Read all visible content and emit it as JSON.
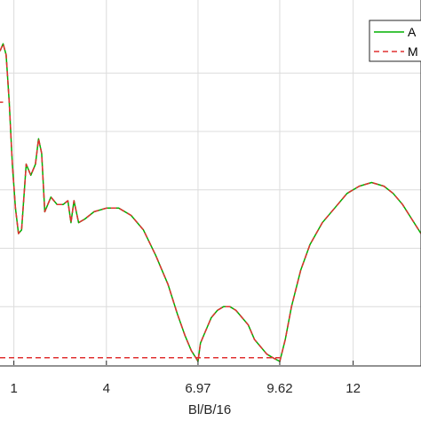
{
  "chart_data": {
    "type": "line",
    "title": "",
    "xlabel": "Bl/B/16",
    "ylabel": "",
    "xlim": [
      0.55,
      14.2
    ],
    "ylim": [
      0,
      1
    ],
    "x_ticks": [
      1,
      4,
      6.97,
      9.62,
      12
    ],
    "x_tick_labels": [
      "1",
      "4",
      "6.97",
      "9.62",
      "12"
    ],
    "grid": true,
    "legend_position": "top-right",
    "series": [
      {
        "name": "A",
        "color": "#00b000",
        "style": "solid",
        "x": [
          0.55,
          0.65,
          0.75,
          0.85,
          0.95,
          1.05,
          1.15,
          1.25,
          1.4,
          1.55,
          1.7,
          1.8,
          1.9,
          2.0,
          2.2,
          2.4,
          2.6,
          2.75,
          2.85,
          2.95,
          3.1,
          3.3,
          3.6,
          4.0,
          4.4,
          4.8,
          5.2,
          5.6,
          6.0,
          6.3,
          6.55,
          6.75,
          6.9,
          6.97,
          7.05,
          7.2,
          7.4,
          7.6,
          7.8,
          8.0,
          8.2,
          8.4,
          8.6,
          8.8,
          9.0,
          9.2,
          9.4,
          9.62,
          9.8,
          10.0,
          10.3,
          10.6,
          11.0,
          11.4,
          11.8,
          12.2,
          12.6,
          13.0,
          13.3,
          13.6,
          13.9,
          14.2
        ],
        "y": [
          0.86,
          0.88,
          0.85,
          0.72,
          0.55,
          0.43,
          0.36,
          0.37,
          0.55,
          0.52,
          0.55,
          0.62,
          0.58,
          0.42,
          0.46,
          0.44,
          0.44,
          0.45,
          0.39,
          0.45,
          0.39,
          0.4,
          0.42,
          0.43,
          0.43,
          0.41,
          0.37,
          0.3,
          0.22,
          0.14,
          0.08,
          0.04,
          0.02,
          0.01,
          0.06,
          0.09,
          0.13,
          0.15,
          0.16,
          0.16,
          0.15,
          0.13,
          0.11,
          0.07,
          0.05,
          0.03,
          0.02,
          0.01,
          0.07,
          0.16,
          0.26,
          0.33,
          0.39,
          0.43,
          0.47,
          0.49,
          0.5,
          0.49,
          0.47,
          0.44,
          0.4,
          0.36
        ]
      },
      {
        "name": "M",
        "color": "#e03030",
        "style": "dashed",
        "x": [
          0.55,
          0.65,
          0.75,
          0.85,
          0.95,
          1.05,
          1.15,
          1.25,
          1.4,
          1.55,
          1.7,
          1.8,
          1.9,
          2.0,
          2.2,
          2.4,
          2.6,
          2.75,
          2.85,
          2.95,
          3.1,
          3.3,
          3.6,
          4.0,
          4.4,
          4.8,
          5.2,
          5.6,
          6.0,
          6.3,
          6.55,
          6.75,
          6.9,
          6.97,
          7.05,
          7.2,
          7.4,
          7.6,
          7.8,
          8.0,
          8.2,
          8.4,
          8.6,
          8.8,
          9.0,
          9.2,
          9.4,
          9.62,
          9.8,
          10.0,
          10.3,
          10.6,
          11.0,
          11.4,
          11.8,
          12.2,
          12.6,
          13.0,
          13.3,
          13.6,
          13.9,
          14.2
        ],
        "y": [
          0.86,
          0.88,
          0.85,
          0.72,
          0.55,
          0.43,
          0.36,
          0.37,
          0.55,
          0.52,
          0.55,
          0.62,
          0.58,
          0.42,
          0.46,
          0.44,
          0.44,
          0.45,
          0.39,
          0.45,
          0.39,
          0.4,
          0.42,
          0.43,
          0.43,
          0.41,
          0.37,
          0.3,
          0.22,
          0.14,
          0.08,
          0.04,
          0.02,
          0.01,
          0.06,
          0.09,
          0.13,
          0.15,
          0.16,
          0.16,
          0.15,
          0.13,
          0.11,
          0.07,
          0.05,
          0.03,
          0.02,
          0.01,
          0.07,
          0.16,
          0.26,
          0.33,
          0.39,
          0.43,
          0.47,
          0.49,
          0.5,
          0.49,
          0.47,
          0.44,
          0.4,
          0.36
        ]
      },
      {
        "name": "",
        "color": "#e03030",
        "style": "dashed",
        "x": [
          0.55,
          0.65
        ],
        "y": [
          0.72,
          0.72
        ]
      },
      {
        "name": "",
        "color": "#e03030",
        "style": "dashed",
        "x": [
          0.55,
          9.62
        ],
        "y": [
          0.02,
          0.02
        ]
      }
    ]
  }
}
